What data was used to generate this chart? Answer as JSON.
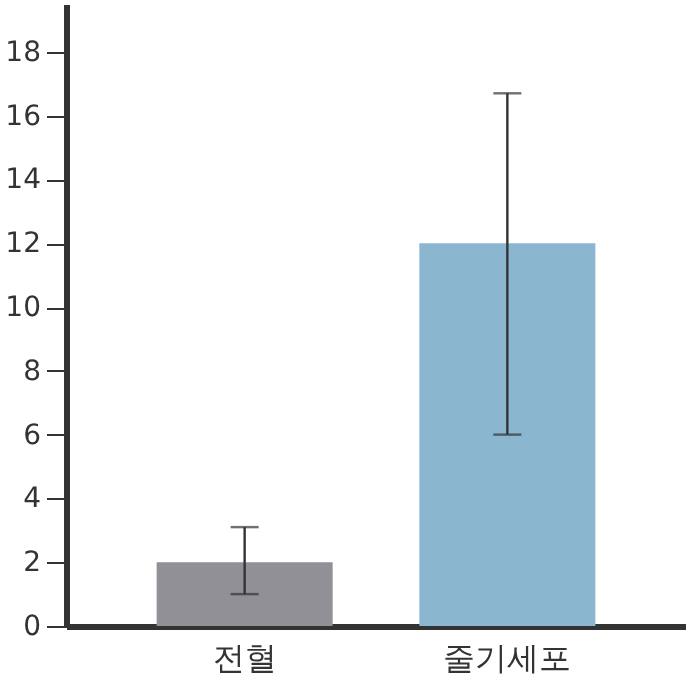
{
  "chart_data": {
    "type": "bar",
    "categories": [
      "전혈",
      "줄기세포"
    ],
    "values": [
      2,
      12
    ],
    "colors": [
      "#929097",
      "#8ab6cf"
    ],
    "errors": [
      [
        1,
        3.1
      ],
      [
        6,
        16.7
      ]
    ],
    "ylim": [
      0,
      19.5
    ],
    "yticks": [
      0,
      2,
      4,
      6,
      8,
      10,
      12,
      14,
      16,
      18
    ],
    "grid": false
  }
}
